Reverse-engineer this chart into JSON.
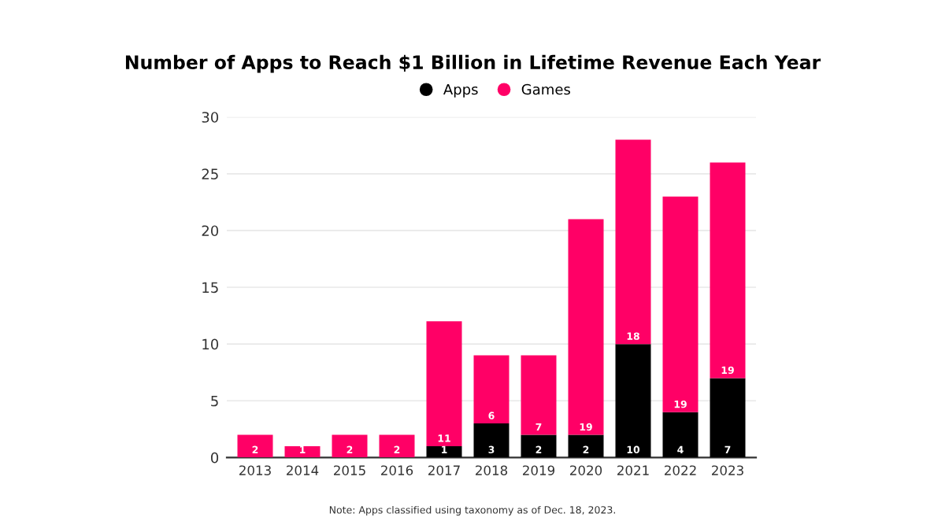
{
  "chart_data": {
    "type": "bar",
    "title": "Number of Apps to Reach $1 Billion in Lifetime Revenue Each Year",
    "categories": [
      "2013",
      "2014",
      "2015",
      "2016",
      "2017",
      "2018",
      "2019",
      "2020",
      "2021",
      "2022",
      "2023"
    ],
    "stacked": true,
    "series": [
      {
        "name": "Apps",
        "color": "#000000",
        "values": [
          0,
          0,
          0,
          0,
          1,
          3,
          2,
          2,
          10,
          4,
          7
        ],
        "value_labels": [
          null,
          null,
          null,
          null,
          "1",
          "3",
          "2",
          "2",
          "10",
          "4",
          "7"
        ]
      },
      {
        "name": "Games",
        "color": "#ff0066",
        "values": [
          2,
          1,
          2,
          2,
          11,
          6,
          7,
          19,
          18,
          19,
          19
        ],
        "value_labels": [
          "2",
          "1",
          "2",
          "2",
          "11",
          "6",
          "7",
          "19",
          "18",
          "19",
          "19"
        ]
      }
    ],
    "ylim": [
      0,
      30
    ],
    "yticks": [
      0,
      5,
      10,
      15,
      20,
      25,
      30
    ],
    "grid": "y",
    "legend": "top",
    "annotations": [
      "Note: Apps classified using taxonomy as of Dec. 18, 2023."
    ]
  }
}
